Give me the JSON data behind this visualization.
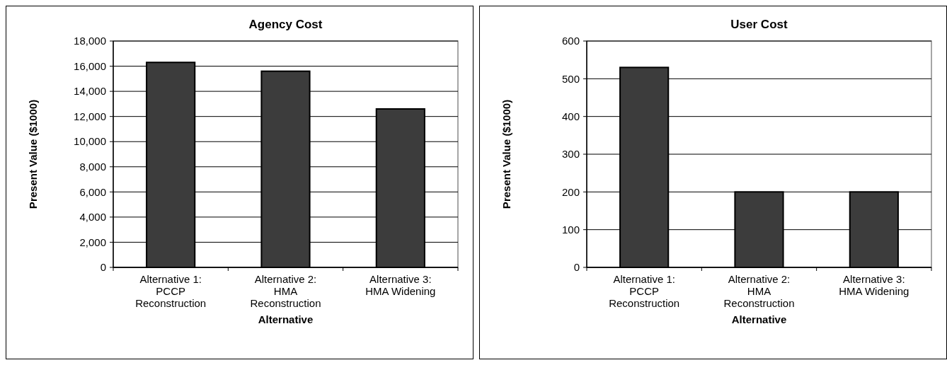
{
  "chart_data": [
    {
      "type": "bar",
      "title": "Agency Cost",
      "xlabel": "Alternative",
      "ylabel": "Present Value ($1000)",
      "categories": [
        "Alternative 1: PCCP Reconstruction",
        "Alternative 2: HMA Reconstruction",
        "Alternative 3: HMA Widening"
      ],
      "values": [
        16300,
        15600,
        12600
      ],
      "color": "#3c3c3c",
      "ylim": [
        0,
        18000
      ],
      "yticks": [
        {
          "value": 0,
          "label": "0"
        },
        {
          "value": 2000,
          "label": "2,000"
        },
        {
          "value": 4000,
          "label": "4,000"
        },
        {
          "value": 6000,
          "label": "6,000"
        },
        {
          "value": 8000,
          "label": "8,000"
        },
        {
          "value": 10000,
          "label": "10,000"
        },
        {
          "value": 12000,
          "label": "12,000"
        },
        {
          "value": 14000,
          "label": "14,000"
        },
        {
          "value": 16000,
          "label": "16,000"
        },
        {
          "value": 18000,
          "label": "18,000"
        }
      ],
      "grid": "y"
    },
    {
      "type": "bar",
      "title": "User Cost",
      "xlabel": "Alternative",
      "ylabel": "Present Value ($1000)",
      "categories": [
        "Alternative 1: PCCP Reconstruction",
        "Alternative 2: HMA Reconstruction",
        "Alternative 3: HMA Widening"
      ],
      "values": [
        530,
        200,
        200
      ],
      "color": "#3c3c3c",
      "ylim": [
        0,
        600
      ],
      "yticks": [
        0,
        100,
        200,
        300,
        400,
        500,
        600
      ],
      "grid": "y"
    }
  ]
}
